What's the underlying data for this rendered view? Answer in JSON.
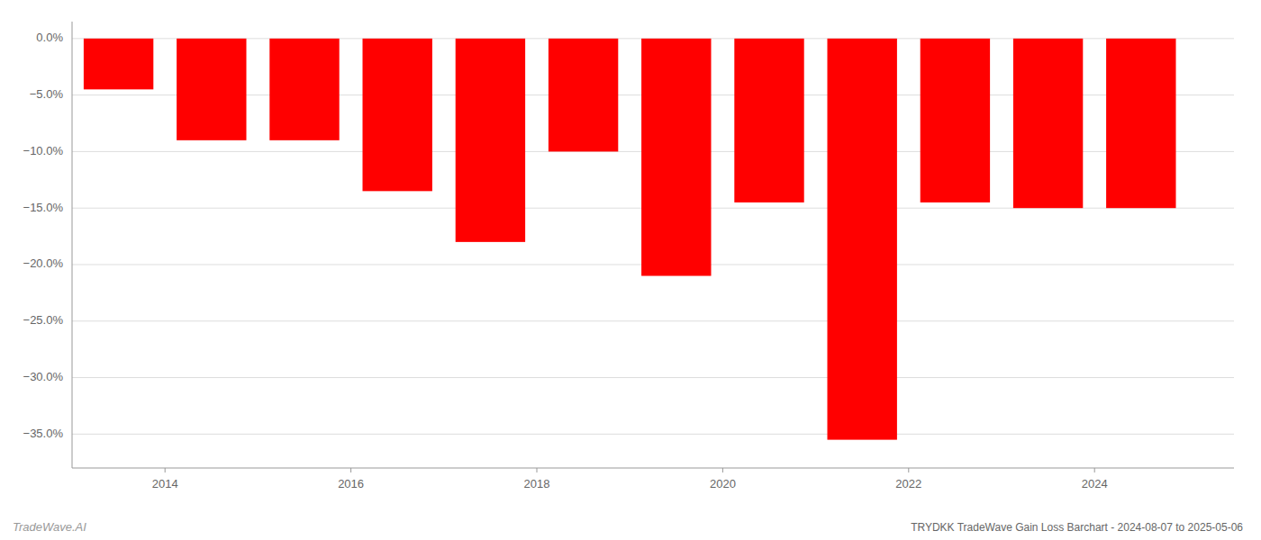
{
  "chart_data": {
    "type": "bar",
    "title": "TRYDKK TradeWave Gain Loss Barchart - 2024-08-07 to 2025-05-06",
    "annotations": [
      "TradeWave.AI"
    ],
    "x": [
      2013.5,
      2014.5,
      2015.5,
      2016.5,
      2017.5,
      2018.5,
      2019.5,
      2020.5,
      2021.5,
      2022.5,
      2023.5,
      2024.5
    ],
    "values": [
      -4.5,
      -9.0,
      -9.0,
      -13.5,
      -18.0,
      -10.0,
      -21.0,
      -14.5,
      -35.5,
      -14.5,
      -15.0,
      -15.0
    ],
    "color": "#ff0000",
    "xlim": [
      2013,
      2025.5
    ],
    "xticks": [
      2014,
      2016,
      2018,
      2020,
      2022,
      2024
    ],
    "ylim": [
      -38,
      1.5
    ],
    "yticks": [
      {
        "value": 0.0,
        "label": "0.0%"
      },
      {
        "value": -5.0,
        "label": "−5.0%"
      },
      {
        "value": -10.0,
        "label": "−10.0%"
      },
      {
        "value": -15.0,
        "label": "−15.0%"
      },
      {
        "value": -20.0,
        "label": "−20.0%"
      },
      {
        "value": -25.0,
        "label": "−25.0%"
      },
      {
        "value": -30.0,
        "label": "−30.0%"
      },
      {
        "value": -35.0,
        "label": "−35.0%"
      }
    ],
    "grid": true
  }
}
